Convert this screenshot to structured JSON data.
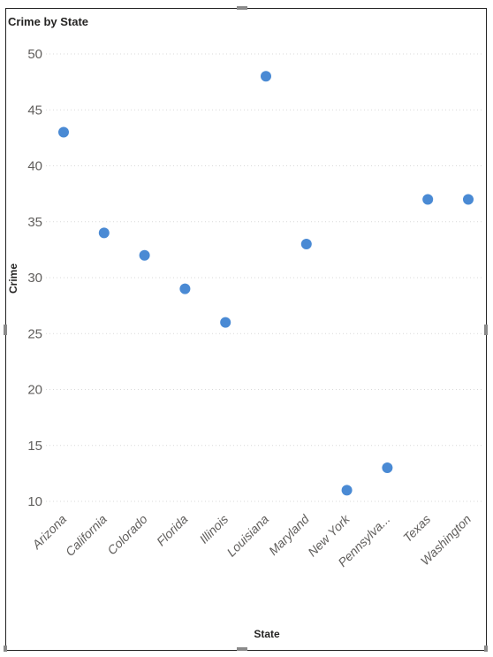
{
  "chart_data": {
    "type": "scatter",
    "title": "Crime by State",
    "xlabel": "State",
    "ylabel": "Crime",
    "categories": [
      "Arizona",
      "California",
      "Colorado",
      "Florida",
      "Illinois",
      "Louisiana",
      "Maryland",
      "New York",
      "Pennsylva...",
      "Texas",
      "Washington"
    ],
    "values": [
      43,
      34,
      32,
      29,
      26,
      48,
      33,
      11,
      13,
      37,
      37
    ],
    "yticks": [
      10,
      15,
      20,
      25,
      30,
      35,
      40,
      45,
      50
    ],
    "ylim": [
      8.5,
      51.5
    ],
    "grid": true,
    "marker_color": "#4a8ad4"
  }
}
